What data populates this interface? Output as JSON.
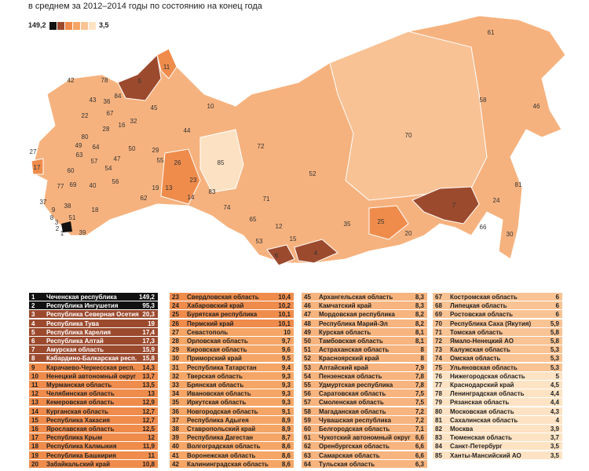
{
  "header": {
    "subtitle": "в среднем за 2012–2014 годы по состоянию на конец года"
  },
  "legend": {
    "max": "149,2",
    "min": "3,5",
    "colors": [
      "#111111",
      "#9c4a2e",
      "#ef8c4c",
      "#f5a666",
      "#f9c394",
      "#fde3c4"
    ]
  },
  "map": {
    "labels": [
      "42",
      "78",
      "5",
      "11",
      "84",
      "43",
      "36",
      "45",
      "10",
      "61",
      "58",
      "46",
      "70",
      "32",
      "16",
      "22",
      "44",
      "72",
      "52",
      "85",
      "26",
      "23",
      "29",
      "55",
      "62",
      "19",
      "13",
      "14",
      "83",
      "74",
      "71",
      "65",
      "12",
      "15",
      "53",
      "6",
      "4",
      "35",
      "25",
      "20",
      "7",
      "24",
      "81",
      "66",
      "30",
      "27",
      "17",
      "77",
      "69",
      "40",
      "56",
      "37",
      "9",
      "8",
      "38",
      "18",
      "51",
      "39",
      "3",
      "2",
      "1",
      "47",
      "49",
      "80",
      "64",
      "57",
      "63",
      "54",
      "60",
      "28",
      "67",
      "50"
    ]
  },
  "table": {
    "columns": [
      {
        "groups": [
          {
            "color": "#111111",
            "rows": [
              [
                1,
                "Чеченская республика",
                "149,2"
              ],
              [
                2,
                "Республика Ингушетия",
                "95,3"
              ]
            ]
          },
          {
            "color": "#9c4a2e",
            "rows": [
              [
                3,
                "Республика Северная Осетия",
                "20,3"
              ],
              [
                4,
                "Республика Тува",
                "19"
              ],
              [
                5,
                "Республика Карелия",
                "17,4"
              ],
              [
                6,
                "Республика Алтай",
                "17,3"
              ],
              [
                7,
                "Амурская область",
                "15,9"
              ],
              [
                8,
                "Кабардино-Балкарская респ.",
                "15,8"
              ]
            ]
          },
          {
            "color": "#ef8c4c",
            "rows": [
              [
                9,
                "Карачаево-Черкесская респ.",
                "14,3"
              ],
              [
                10,
                "Ненецкий автономный округ",
                "13,7"
              ],
              [
                11,
                "Мурманская область",
                "13,5"
              ],
              [
                12,
                "Челябинская область",
                "13"
              ],
              [
                13,
                "Кемеровская область",
                "12,9"
              ],
              [
                14,
                "Курганская область",
                "12,7"
              ],
              [
                15,
                "Республика Хакасия",
                "12,7"
              ],
              [
                16,
                "Ярославская область",
                "12,5"
              ],
              [
                17,
                "Республика Крым",
                "12"
              ],
              [
                18,
                "Республика Калмыкия",
                "11,9"
              ],
              [
                19,
                "Республика Башкирия",
                "11"
              ],
              [
                20,
                "Забайкальский край",
                "10,8"
              ]
            ]
          }
        ]
      },
      {
        "groups": [
          {
            "color": "#ef8c4c",
            "rows": [
              [
                23,
                "Свердловская область",
                "10,4"
              ],
              [
                24,
                "Хабаровский край",
                "10,2"
              ],
              [
                25,
                "Бурятская республика",
                "10,1"
              ],
              [
                26,
                "Пермский край",
                "10,1"
              ]
            ]
          },
          {
            "color": "#f5a666",
            "rows": [
              [
                27,
                "Севастополь",
                "10"
              ],
              [
                28,
                "Орловская область",
                "9,7"
              ],
              [
                29,
                "Кировская область",
                "9,6"
              ],
              [
                30,
                "Приморский край",
                "9,5"
              ],
              [
                31,
                "Республика Татарстан",
                "9,4"
              ],
              [
                32,
                "Тверская область",
                "9,3"
              ],
              [
                33,
                "Брянская область",
                "9,3"
              ],
              [
                34,
                "Ивановская область",
                "9,3"
              ],
              [
                35,
                "Иркутская область",
                "9,3"
              ],
              [
                36,
                "Новгородская область",
                "9,1"
              ],
              [
                37,
                "Республика Адыгея",
                "8,9"
              ],
              [
                38,
                "Ставропольский край",
                "8,9"
              ],
              [
                39,
                "Республика Дагестан",
                "8,7"
              ],
              [
                40,
                "Волгоградская область",
                "8,6"
              ],
              [
                41,
                "Воронежская область",
                "8,6"
              ],
              [
                42,
                "Калининградская область",
                "8,6"
              ]
            ]
          }
        ]
      },
      {
        "groups": [
          {
            "color": "#f7b47e",
            "rows": [
              [
                45,
                "Архангельская область",
                "8,3"
              ],
              [
                46,
                "Камчатский край",
                "8,3"
              ],
              [
                47,
                "Мордовская республика",
                "8,2"
              ],
              [
                48,
                "Республика Марий-Эл",
                "8,2"
              ],
              [
                49,
                "Курская область",
                "8,1"
              ],
              [
                50,
                "Тамбовская область",
                "8,1"
              ],
              [
                51,
                "Астраханская область",
                "8"
              ],
              [
                52,
                "Красноярский край",
                "8"
              ],
              [
                53,
                "Алтайский край",
                "7,9"
              ],
              [
                54,
                "Пензенская область",
                "7,8"
              ],
              [
                55,
                "Удмуртская республика",
                "7,8"
              ],
              [
                56,
                "Саратовская область",
                "7,5"
              ],
              [
                57,
                "Смоленская область",
                "7,5"
              ],
              [
                58,
                "Магаданская область",
                "7,2"
              ],
              [
                59,
                "Чувашская республика",
                "7,2"
              ],
              [
                60,
                "Белгородская область",
                "7,1"
              ],
              [
                61,
                "Чукотский автономный округ",
                "6,6"
              ],
              [
                62,
                "Оренбургская область",
                "6,6"
              ],
              [
                63,
                "Самарская область",
                "6,6"
              ],
              [
                64,
                "Тульская область",
                "6,3"
              ]
            ]
          }
        ]
      },
      {
        "groups": [
          {
            "color": "#f9c394",
            "rows": [
              [
                67,
                "Костромская область",
                "6"
              ],
              [
                68,
                "Липецкая область",
                "6"
              ],
              [
                69,
                "Ростовская область",
                "6"
              ],
              [
                70,
                "Республика Саха (Якутия)",
                "5,9"
              ],
              [
                71,
                "Томская область",
                "5,8"
              ],
              [
                72,
                "Ямало-Ненецкий АО",
                "5,8"
              ],
              [
                73,
                "Калужская область",
                "5,3"
              ],
              [
                74,
                "Омская область",
                "5,3"
              ],
              [
                75,
                "Ульяновская область",
                "5,3"
              ]
            ]
          },
          {
            "color": "#fde3c4",
            "rows": [
              [
                76,
                "Нижегородская область",
                "5"
              ],
              [
                77,
                "Краснодарский край",
                "4,5"
              ],
              [
                78,
                "Ленинградская область",
                "4,4"
              ],
              [
                79,
                "Рязанская область",
                "4,4"
              ],
              [
                80,
                "Московская область",
                "4,3"
              ],
              [
                81,
                "Сахалинская область",
                "4"
              ],
              [
                82,
                "Москва",
                "3,9"
              ],
              [
                83,
                "Тюменская область",
                "3,7"
              ],
              [
                84,
                "Санкт-Петербург",
                "3,5"
              ],
              [
                85,
                "Ханты-Мансийский АО",
                "3,5"
              ]
            ]
          }
        ]
      }
    ]
  }
}
